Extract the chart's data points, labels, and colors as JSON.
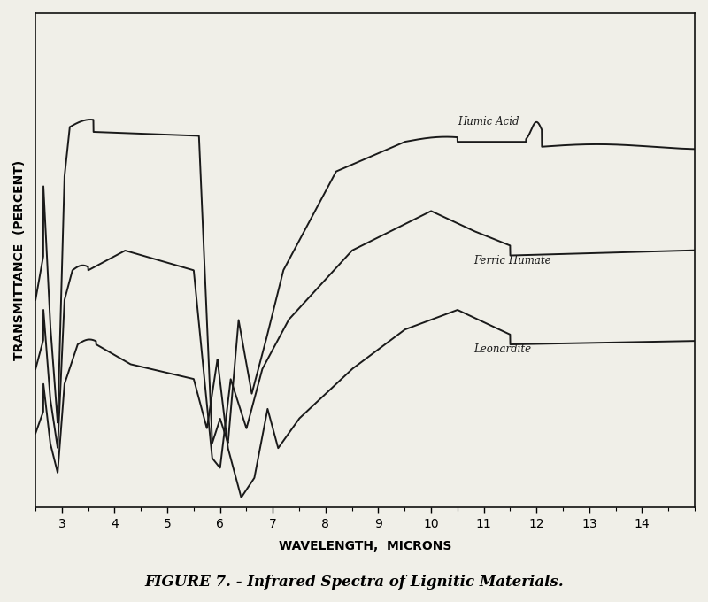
{
  "title": "FIGURE 7. - Infrared Spectra of Lignitic Materials.",
  "xlabel": "WAVELENGTH,  MICRONS",
  "ylabel": "TRANSMITTANCE  (PERCENT)",
  "xlim": [
    2.5,
    15.0
  ],
  "ylim": [
    0,
    100
  ],
  "xticks": [
    3,
    4,
    5,
    6,
    7,
    8,
    9,
    10,
    11,
    12,
    13,
    14
  ],
  "background_color": "#f0efe8",
  "line_color": "#1a1a1a",
  "labels": {
    "humic_acid": "Humic Acid",
    "ferric_humate": "Ferric Humate",
    "leonardite": "Leonardite"
  },
  "label_positions": {
    "humic_acid": [
      10.5,
      78
    ],
    "ferric_humate": [
      10.8,
      50
    ],
    "leonardite": [
      10.8,
      32
    ]
  }
}
